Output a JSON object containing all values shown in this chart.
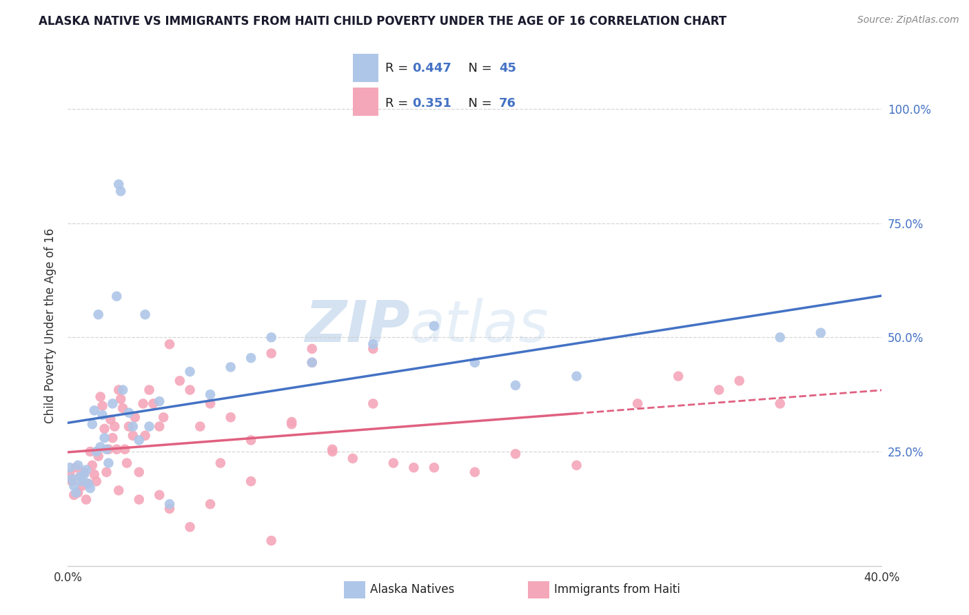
{
  "title": "ALASKA NATIVE VS IMMIGRANTS FROM HAITI CHILD POVERTY UNDER THE AGE OF 16 CORRELATION CHART",
  "source": "Source: ZipAtlas.com",
  "ylabel_label": "Child Poverty Under the Age of 16",
  "xlim": [
    0.0,
    0.4
  ],
  "ylim": [
    0.0,
    1.05
  ],
  "legend1_R": "0.447",
  "legend1_N": "45",
  "legend2_R": "0.351",
  "legend2_N": "76",
  "legend1_label": "Alaska Natives",
  "legend2_label": "Immigrants from Haiti",
  "color_blue": "#aec6e8",
  "color_pink": "#f4a7b9",
  "color_blue_line": "#4472c4",
  "color_pink_line": "#e06080",
  "watermark_zip": "ZIP",
  "watermark_atlas": "atlas",
  "alaska_x": [
    0.001,
    0.002,
    0.003,
    0.004,
    0.005,
    0.006,
    0.007,
    0.008,
    0.009,
    0.01,
    0.011,
    0.012,
    0.013,
    0.014,
    0.015,
    0.016,
    0.017,
    0.018,
    0.019,
    0.02,
    0.022,
    0.024,
    0.025,
    0.026,
    0.027,
    0.03,
    0.032,
    0.035,
    0.038,
    0.04,
    0.045,
    0.05,
    0.06,
    0.07,
    0.08,
    0.09,
    0.1,
    0.12,
    0.15,
    0.18,
    0.2,
    0.22,
    0.25,
    0.35,
    0.37
  ],
  "alaska_y": [
    0.215,
    0.19,
    0.175,
    0.16,
    0.22,
    0.195,
    0.185,
    0.2,
    0.21,
    0.18,
    0.17,
    0.31,
    0.34,
    0.25,
    0.55,
    0.26,
    0.33,
    0.28,
    0.255,
    0.225,
    0.355,
    0.59,
    0.835,
    0.82,
    0.385,
    0.335,
    0.305,
    0.275,
    0.55,
    0.305,
    0.36,
    0.135,
    0.425,
    0.375,
    0.435,
    0.455,
    0.5,
    0.445,
    0.485,
    0.525,
    0.445,
    0.395,
    0.415,
    0.5,
    0.51
  ],
  "haiti_x": [
    0.001,
    0.002,
    0.003,
    0.004,
    0.005,
    0.006,
    0.007,
    0.008,
    0.009,
    0.01,
    0.011,
    0.012,
    0.013,
    0.014,
    0.015,
    0.016,
    0.017,
    0.018,
    0.019,
    0.02,
    0.021,
    0.022,
    0.023,
    0.024,
    0.025,
    0.026,
    0.027,
    0.028,
    0.029,
    0.03,
    0.032,
    0.033,
    0.035,
    0.037,
    0.038,
    0.04,
    0.042,
    0.045,
    0.047,
    0.05,
    0.055,
    0.06,
    0.065,
    0.07,
    0.075,
    0.08,
    0.09,
    0.1,
    0.11,
    0.12,
    0.13,
    0.14,
    0.15,
    0.16,
    0.17,
    0.18,
    0.2,
    0.22,
    0.25,
    0.28,
    0.3,
    0.32,
    0.33,
    0.35,
    0.12,
    0.09,
    0.1,
    0.07,
    0.06,
    0.05,
    0.025,
    0.035,
    0.045,
    0.15,
    0.13,
    0.11
  ],
  "haiti_y": [
    0.2,
    0.185,
    0.155,
    0.215,
    0.16,
    0.195,
    0.175,
    0.205,
    0.145,
    0.18,
    0.25,
    0.22,
    0.2,
    0.185,
    0.24,
    0.37,
    0.35,
    0.3,
    0.205,
    0.255,
    0.32,
    0.28,
    0.305,
    0.255,
    0.385,
    0.365,
    0.345,
    0.255,
    0.225,
    0.305,
    0.285,
    0.325,
    0.205,
    0.355,
    0.285,
    0.385,
    0.355,
    0.305,
    0.325,
    0.485,
    0.405,
    0.385,
    0.305,
    0.355,
    0.225,
    0.325,
    0.185,
    0.465,
    0.31,
    0.445,
    0.25,
    0.235,
    0.355,
    0.225,
    0.215,
    0.215,
    0.205,
    0.245,
    0.22,
    0.355,
    0.415,
    0.385,
    0.405,
    0.355,
    0.475,
    0.275,
    0.055,
    0.135,
    0.085,
    0.125,
    0.165,
    0.145,
    0.155,
    0.475,
    0.255,
    0.315
  ]
}
